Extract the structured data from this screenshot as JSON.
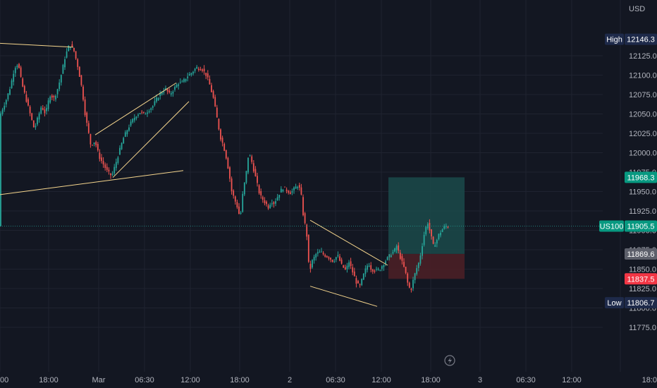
{
  "chart_data": {
    "type": "candlestick",
    "currency": "USD",
    "symbol": "US100",
    "ylim": [
      11760,
      12170
    ],
    "y_ticks": [
      11775.0,
      11800.0,
      11825.0,
      11850.0,
      11875.0,
      11900.0,
      11925.0,
      11950.0,
      11975.0,
      12000.0,
      12025.0,
      12050.0,
      12075.0,
      12100.0,
      12125.0
    ],
    "x_ticks": [
      "00",
      "18:00",
      "Mar",
      "06:30",
      "12:00",
      "18:00",
      "2",
      "06:30",
      "12:00",
      "18:00",
      "3",
      "06:30",
      "12:00",
      "18:0"
    ],
    "last_price": 11905.5,
    "high": {
      "label": "High",
      "value": "12146.3"
    },
    "low": {
      "label": "Low",
      "value": "11806.7"
    },
    "position": {
      "target": "11968.3",
      "entry": "11869.6",
      "stop": "11837.5"
    },
    "close_path": [
      [
        0,
        12045
      ],
      [
        4,
        12055
      ],
      [
        10,
        12068
      ],
      [
        16,
        12085
      ],
      [
        22,
        12110
      ],
      [
        27,
        12115
      ],
      [
        32,
        12090
      ],
      [
        38,
        12070
      ],
      [
        44,
        12050
      ],
      [
        50,
        12030
      ],
      [
        55,
        12045
      ],
      [
        60,
        12060
      ],
      [
        66,
        12050
      ],
      [
        72,
        12075
      ],
      [
        78,
        12070
      ],
      [
        84,
        12085
      ],
      [
        88,
        12100
      ],
      [
        94,
        12125
      ],
      [
        100,
        12140
      ],
      [
        106,
        12132
      ],
      [
        112,
        12110
      ],
      [
        118,
        12080
      ],
      [
        122,
        12050
      ],
      [
        126,
        12030
      ],
      [
        130,
        12010
      ],
      [
        136,
        12015
      ],
      [
        142,
        11995
      ],
      [
        148,
        11985
      ],
      [
        154,
        11975
      ],
      [
        160,
        11970
      ],
      [
        164,
        11982
      ],
      [
        170,
        12000
      ],
      [
        176,
        12018
      ],
      [
        182,
        12030
      ],
      [
        188,
        12040
      ],
      [
        194,
        12048
      ],
      [
        200,
        12052
      ],
      [
        206,
        12050
      ],
      [
        212,
        12055
      ],
      [
        218,
        12060
      ],
      [
        224,
        12070
      ],
      [
        230,
        12078
      ],
      [
        236,
        12082
      ],
      [
        242,
        12075
      ],
      [
        248,
        12082
      ],
      [
        254,
        12090
      ],
      [
        260,
        12090
      ],
      [
        266,
        12098
      ],
      [
        272,
        12102
      ],
      [
        280,
        12110
      ],
      [
        288,
        12108
      ],
      [
        294,
        12100
      ],
      [
        298,
        12090
      ],
      [
        304,
        12070
      ],
      [
        310,
        12040
      ],
      [
        314,
        12020
      ],
      [
        318,
        12010
      ],
      [
        322,
        11995
      ],
      [
        326,
        11975
      ],
      [
        330,
        11950
      ],
      [
        334,
        11940
      ],
      [
        338,
        11930
      ],
      [
        342,
        11915
      ],
      [
        346,
        11950
      ],
      [
        350,
        11970
      ],
      [
        354,
        12000
      ],
      [
        358,
        11990
      ],
      [
        362,
        11975
      ],
      [
        366,
        11960
      ],
      [
        370,
        11945
      ],
      [
        374,
        11940
      ],
      [
        378,
        11935
      ],
      [
        382,
        11930
      ],
      [
        386,
        11938
      ],
      [
        390,
        11935
      ],
      [
        396,
        11945
      ],
      [
        402,
        11955
      ],
      [
        408,
        11952
      ],
      [
        414,
        11948
      ],
      [
        420,
        11955
      ],
      [
        424,
        11958
      ],
      [
        428,
        11950
      ],
      [
        432,
        11915
      ],
      [
        436,
        11900
      ],
      [
        440,
        11845
      ],
      [
        444,
        11860
      ],
      [
        450,
        11870
      ],
      [
        456,
        11872
      ],
      [
        462,
        11868
      ],
      [
        468,
        11865
      ],
      [
        474,
        11860
      ],
      [
        480,
        11868
      ],
      [
        486,
        11855
      ],
      [
        492,
        11848
      ],
      [
        496,
        11860
      ],
      [
        500,
        11850
      ],
      [
        504,
        11840
      ],
      [
        508,
        11830
      ],
      [
        512,
        11828
      ],
      [
        516,
        11840
      ],
      [
        520,
        11850
      ],
      [
        524,
        11858
      ],
      [
        528,
        11850
      ],
      [
        534,
        11848
      ],
      [
        540,
        11850
      ],
      [
        546,
        11858
      ],
      [
        552,
        11865
      ],
      [
        556,
        11870
      ],
      [
        560,
        11872
      ],
      [
        564,
        11880
      ],
      [
        568,
        11868
      ],
      [
        572,
        11858
      ],
      [
        576,
        11848
      ],
      [
        580,
        11830
      ],
      [
        584,
        11822
      ],
      [
        588,
        11838
      ],
      [
        592,
        11850
      ],
      [
        596,
        11860
      ],
      [
        600,
        11880
      ],
      [
        604,
        11900
      ],
      [
        608,
        11910
      ],
      [
        612,
        11895
      ],
      [
        616,
        11880
      ],
      [
        620,
        11885
      ],
      [
        624,
        11895
      ],
      [
        628,
        11900
      ],
      [
        632,
        11905
      ],
      [
        636,
        11905.5
      ]
    ]
  },
  "drawings": {
    "color": "#f5d58d",
    "lines": [
      {
        "x": [
          0,
          104
        ],
        "y": [
          12141,
          12136
        ]
      },
      {
        "x": [
          0,
          260
        ],
        "y": [
          11946,
          11977
        ]
      },
      {
        "x": [
          135,
          250
        ],
        "y": [
          12023,
          12090
        ]
      },
      {
        "x": [
          160,
          268
        ],
        "y": [
          11968,
          12066
        ]
      },
      {
        "x": [
          440,
          550
        ],
        "y": [
          11913,
          11855
        ]
      },
      {
        "x": [
          440,
          535
        ],
        "y": [
          11828,
          11802
        ]
      }
    ]
  },
  "colors": {
    "background": "#131722",
    "grid": "#1f2330",
    "up": "#26a69a",
    "down": "#ef5350",
    "target_fill": "#1b4a4a",
    "stop_fill": "#4a1f26",
    "badge_dark": "#1e2a4a",
    "badge_teal": "#089981",
    "badge_gray": "#5d606b",
    "badge_red": "#f23645",
    "lightning_icon": "#787b86"
  }
}
